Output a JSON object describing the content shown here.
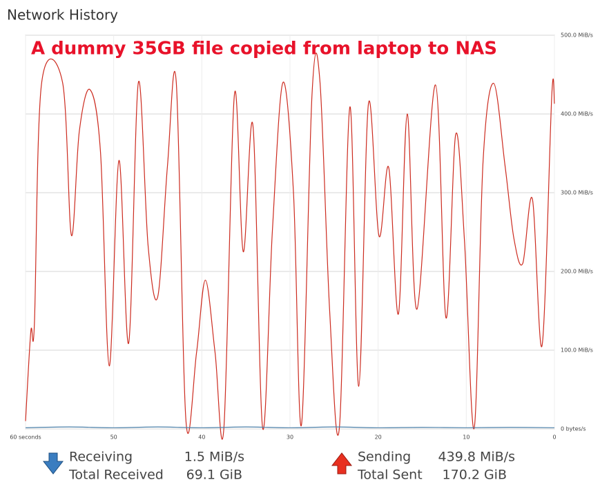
{
  "header": {
    "title": "Network History"
  },
  "chart_data": {
    "type": "line",
    "annotation": "A dummy 35GB file copied from laptop to NAS",
    "xlim": [
      60,
      0
    ],
    "xticks": [
      {
        "value": 60,
        "label": "60 seconds"
      },
      50,
      40,
      30,
      20,
      10,
      0
    ],
    "ylim": [
      0,
      500
    ],
    "yticks": [
      {
        "value": 0,
        "label": "0 bytes/s"
      },
      {
        "value": 100,
        "label": "100.0 MiB/s"
      },
      {
        "value": 200,
        "label": "200.0 MiB/s"
      },
      {
        "value": 300,
        "label": "300.0 MiB/s"
      },
      {
        "value": 400,
        "label": "400.0 MiB/s"
      },
      {
        "value": 500,
        "label": "500.0 MiB/s"
      }
    ],
    "grid": true,
    "series": [
      {
        "name": "Sending",
        "color": "#cc2a1e",
        "x": [
          60,
          59.4,
          59.0,
          58.2,
          55.8,
          54.8,
          53.9,
          52.7,
          51.5,
          50.5,
          49.4,
          48.3,
          47.2,
          46.1,
          45.0,
          43.9,
          42.9,
          41.8,
          40.6,
          39.6,
          38.5,
          37.5,
          36.3,
          35.3,
          34.2,
          33.1,
          32.0,
          30.8,
          29.6,
          28.7,
          27.5,
          26.6,
          25.5,
          24.4,
          23.2,
          22.2,
          21.1,
          19.9,
          18.8,
          17.7,
          16.7,
          15.6,
          13.5,
          12.3,
          11.2,
          10.2,
          9.1,
          8.1,
          6.9,
          5.6,
          4.6,
          3.6,
          2.5,
          1.4,
          0.3,
          0
        ],
        "values": [
          10,
          124,
          132,
          437,
          440,
          246,
          378,
          431,
          352,
          80,
          341,
          109,
          440,
          233,
          168,
          334,
          440,
          10,
          97,
          189,
          97,
          1,
          425,
          225,
          385,
          1,
          251,
          440,
          299,
          5,
          425,
          441,
          150,
          1,
          409,
          54,
          413,
          245,
          332,
          146,
          400,
          152,
          437,
          141,
          374,
          238,
          1,
          339,
          439,
          334,
          242,
          210,
          292,
          106,
          424,
          413
        ]
      },
      {
        "name": "Receiving",
        "color": "#4a7fa8",
        "x": [
          60,
          55,
          50,
          45,
          40,
          35,
          30,
          25,
          20,
          15,
          10,
          5,
          0
        ],
        "values": [
          1.5,
          2.5,
          1.5,
          2.5,
          1.5,
          2.5,
          1.5,
          2.5,
          1.5,
          2,
          1.5,
          2,
          1.5
        ]
      }
    ]
  },
  "footer": {
    "receiving_label": "Receiving",
    "receiving_value": "1.5 MiB/s",
    "total_received_label": "Total Received",
    "total_received_value": "69.1 GiB",
    "sending_label": "Sending",
    "sending_value": "439.8 MiB/s",
    "total_sent_label": "Total Sent",
    "total_sent_value": "170.2 GiB"
  }
}
